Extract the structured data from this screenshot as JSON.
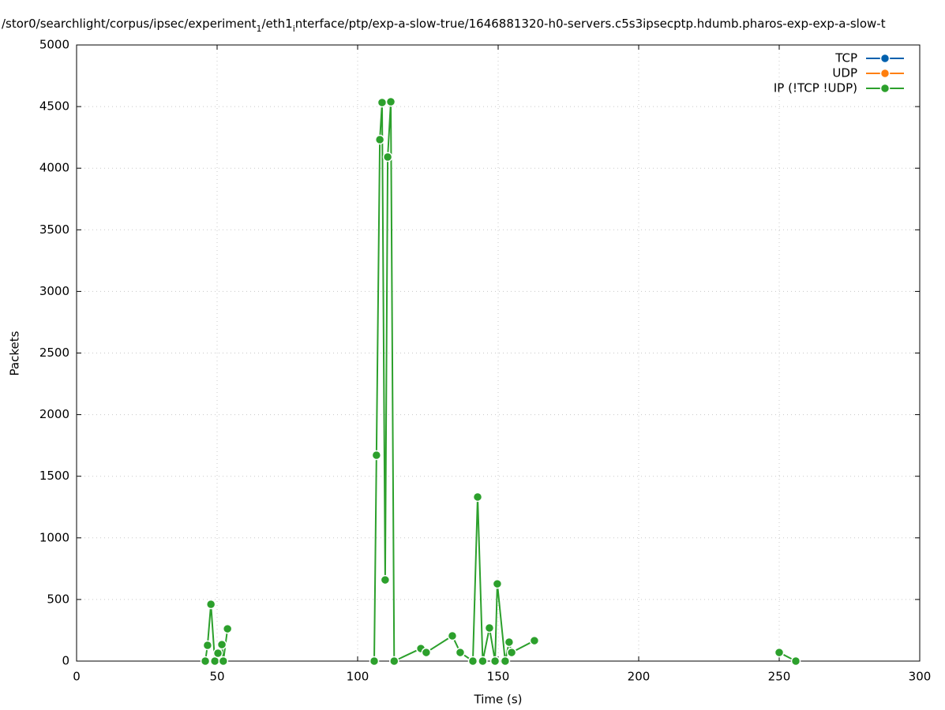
{
  "chart_data": {
    "type": "line",
    "title": [
      {
        "text": "/stor0/searchlight/corpus/ipsec/experiment",
        "subscript": false
      },
      {
        "text": "1",
        "subscript": true
      },
      {
        "text": "/eth1",
        "subscript": false
      },
      {
        "text": "i",
        "subscript": true
      },
      {
        "text": "nterface/ptp/exp-a-slow-true/1646881320-h0-servers.c5s3ipsecptp.hdumb.pharos-exp-exp-a-slow-t",
        "subscript": false
      }
    ],
    "x_label": "Time (s)",
    "y_label": "Packets",
    "xlim": [
      0,
      300
    ],
    "xticks": [
      0,
      50,
      100,
      150,
      200,
      250,
      300
    ],
    "ylim": [
      0,
      5000
    ],
    "yticks": [
      0,
      500,
      1000,
      1500,
      2000,
      2500,
      3000,
      3500,
      4000,
      4500,
      5000
    ],
    "grid": true,
    "legend": "top-right",
    "series": [
      {
        "name": "TCP",
        "color": "#0060ad",
        "x": [],
        "values": []
      },
      {
        "name": "UDP",
        "color": "#ff7f0e",
        "x": [],
        "values": []
      },
      {
        "name": "IP (!TCP  !UDP)",
        "color": "#2ca02c",
        "x": [
          45.8,
          46.6,
          47.8,
          49.2,
          50.3,
          51.7,
          52.2,
          53.7,
          80,
          105.9,
          106.7,
          107.9,
          108.7,
          109.8,
          110.7,
          111.8,
          113,
          122.5,
          124.4,
          133.7,
          136.5,
          141,
          142.7,
          144.5,
          146.9,
          148.9,
          149.7,
          152.5,
          153.9,
          154.8,
          162.9,
          200,
          250,
          255.9
        ],
        "values": [
          0,
          128,
          461,
          0,
          64,
          134,
          0,
          262,
          null,
          0,
          1671,
          4232,
          4533,
          659,
          4091,
          4539,
          0,
          102,
          70,
          205,
          70,
          0,
          1332,
          0,
          269,
          0,
          627,
          0,
          154,
          70,
          166,
          null,
          70,
          0
        ]
      }
    ]
  }
}
